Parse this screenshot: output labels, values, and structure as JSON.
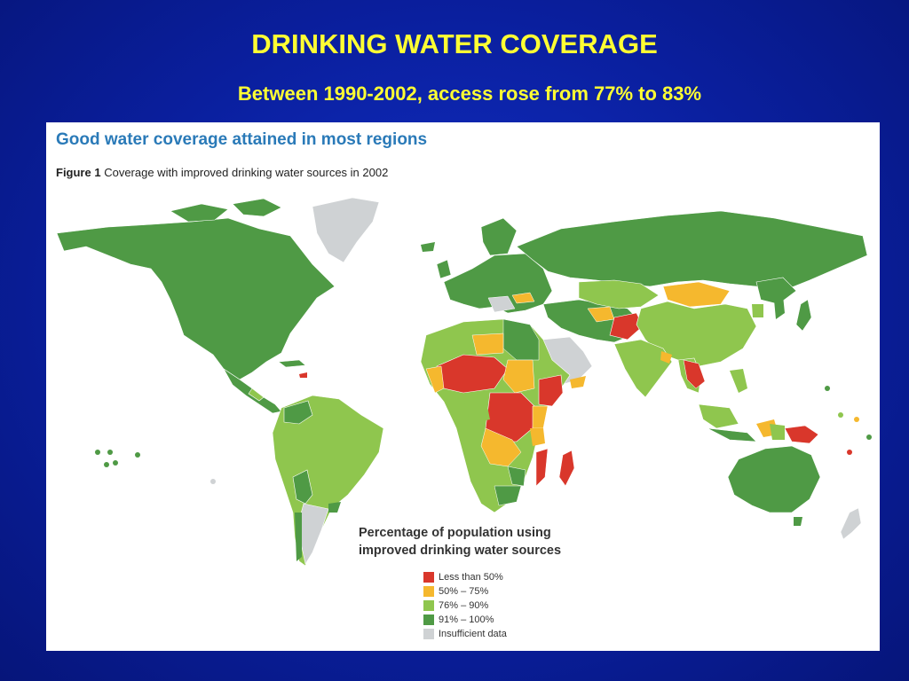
{
  "slide": {
    "title": "DRINKING WATER COVERAGE",
    "subtitle": "Between 1990-2002, access rose from 77% to 83%"
  },
  "figure": {
    "heading": "Good water coverage attained in most regions",
    "caption_prefix": "Figure 1",
    "caption": "Coverage with improved drinking water sources in 2002"
  },
  "legend": {
    "title_line1": "Percentage of population using",
    "title_line2": "improved drinking water sources",
    "items": [
      {
        "label": "Less than 50%",
        "color": "#d9372b"
      },
      {
        "label": "50% – 75%",
        "color": "#f5b82e"
      },
      {
        "label": "76% – 90%",
        "color": "#8fc64e"
      },
      {
        "label": "91% – 100%",
        "color": "#4f9a45"
      },
      {
        "label": "Insufficient data",
        "color": "#cfd2d4"
      }
    ]
  },
  "colors": {
    "background": "#0a1f9e",
    "title_text": "#ffff33",
    "heading_text": "#2a7ab8"
  }
}
